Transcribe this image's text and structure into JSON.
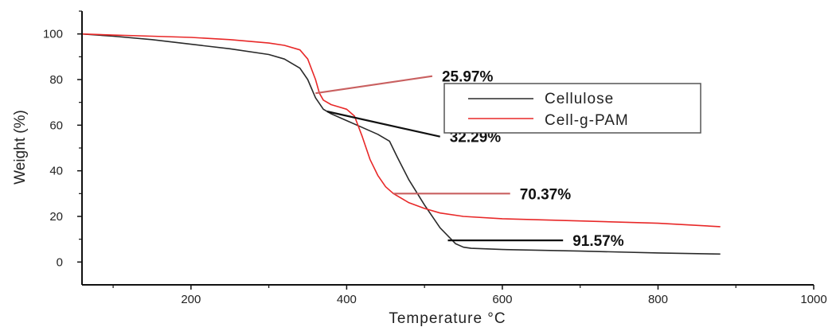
{
  "chart_data": {
    "type": "line",
    "title": "",
    "xlabel": "Temperature °C",
    "ylabel": "Weight (%)",
    "xlim": [
      60,
      1000
    ],
    "ylim": [
      -10,
      110
    ],
    "xticks": [
      200,
      400,
      600,
      800,
      1000
    ],
    "yticks": [
      0,
      20,
      40,
      60,
      80,
      100
    ],
    "grid": false,
    "legend_position": "upper-right",
    "series": [
      {
        "name": "Cellulose",
        "color": "#2a2a2a",
        "x": [
          60,
          100,
          150,
          200,
          250,
          300,
          320,
          340,
          350,
          360,
          370,
          380,
          400,
          420,
          440,
          455,
          465,
          480,
          500,
          520,
          540,
          550,
          560,
          600,
          700,
          800,
          880
        ],
        "y": [
          100,
          99,
          97.5,
          95.5,
          93.5,
          91,
          89,
          85,
          80,
          72,
          67,
          65,
          62,
          59,
          56,
          53,
          46,
          36,
          25,
          15,
          8,
          6.5,
          6,
          5.5,
          4.8,
          4,
          3.5
        ]
      },
      {
        "name": "Cell-g-PAM",
        "color": "#e82828",
        "x": [
          60,
          100,
          150,
          200,
          250,
          300,
          320,
          340,
          350,
          360,
          365,
          370,
          380,
          390,
          400,
          410,
          420,
          430,
          440,
          450,
          460,
          480,
          500,
          520,
          550,
          600,
          700,
          800,
          880
        ],
        "y": [
          100,
          99.5,
          99,
          98.5,
          97.5,
          96,
          95,
          93,
          89,
          80,
          74,
          71,
          69,
          68,
          67,
          64,
          55,
          45,
          38,
          33,
          30,
          26,
          23.5,
          21.5,
          20,
          19,
          18,
          17,
          15.5
        ]
      }
    ],
    "annotations": [
      {
        "label": "25.97%",
        "color": "#c96060",
        "from": [
          360,
          74
        ],
        "to": [
          510,
          81.5
        ]
      },
      {
        "label": "32.29%",
        "color": "#111111",
        "from": [
          375,
          66
        ],
        "to": [
          520,
          55
        ]
      },
      {
        "label": "70.37%",
        "color": "#c96060",
        "from": [
          460,
          30
        ],
        "to": [
          610,
          30
        ]
      },
      {
        "label": "91.57%",
        "color": "#111111",
        "from": [
          530,
          9.5
        ],
        "to": [
          678,
          9.5
        ]
      }
    ]
  }
}
